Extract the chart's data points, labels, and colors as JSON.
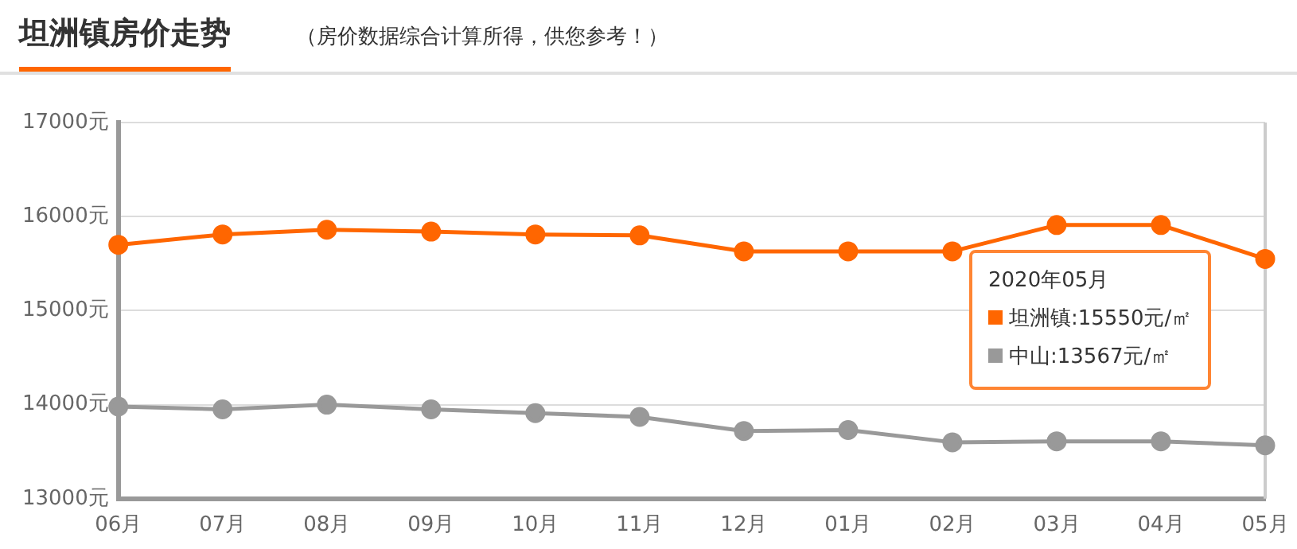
{
  "chart_data": {
    "type": "line",
    "title": "坦洲镇房价走势",
    "subtitle": "（房价数据综合计算所得，供您参考！）",
    "categories": [
      "06月",
      "07月",
      "08月",
      "09月",
      "10月",
      "11月",
      "12月",
      "01月",
      "02月",
      "03月",
      "04月",
      "05月"
    ],
    "series": [
      {
        "name": "坦洲镇",
        "color": "#ff6600",
        "values": [
          15700,
          15810,
          15860,
          15840,
          15810,
          15800,
          15630,
          15630,
          15630,
          15910,
          15910,
          15550
        ]
      },
      {
        "name": "中山",
        "color": "#999999",
        "values": [
          13980,
          13950,
          14000,
          13950,
          13910,
          13870,
          13720,
          13730,
          13600,
          13610,
          13610,
          13567
        ]
      }
    ],
    "ylim": [
      13000,
      17000
    ],
    "yticks": [
      {
        "value": 13000,
        "label": "13000元"
      },
      {
        "value": 14000,
        "label": "14000元"
      },
      {
        "value": 15000,
        "label": "15000元"
      },
      {
        "value": 16000,
        "label": "16000元"
      },
      {
        "value": 17000,
        "label": "17000元"
      }
    ],
    "annotations": [
      "2020年05月",
      ":15550元/㎡",
      ":13567元/㎡"
    ],
    "ref_lines": [
      {
        "axis": "x",
        "value": "05月",
        "color": "#cccccc"
      }
    ],
    "grid": "y",
    "legend": "right",
    "marker": "circle",
    "line_style": "solid"
  }
}
